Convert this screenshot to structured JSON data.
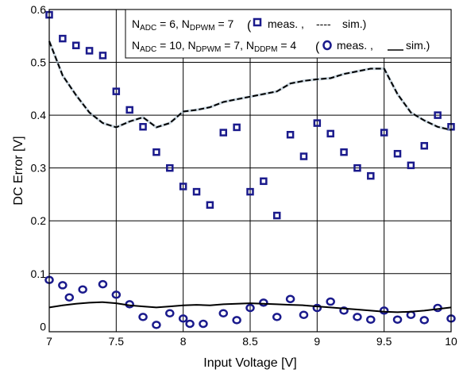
{
  "chart_data": {
    "type": "scatter",
    "xlabel": "Input Voltage [V]",
    "ylabel": "DC Error [V]",
    "xlim": [
      7,
      10
    ],
    "ylim": [
      -0.01,
      0.6
    ],
    "xticks": [
      "7",
      "7.5",
      "8",
      "8.5",
      "9",
      "9.5",
      "10"
    ],
    "yticks": [
      "0",
      "0.1",
      "0.2",
      "0.3",
      "0.4",
      "0.5",
      "0.6"
    ],
    "grid": true,
    "legend_position": "top-right",
    "series": [
      {
        "marker": "square",
        "color": "#1a1a8c",
        "x": [
          7.0,
          7.1,
          7.2,
          7.3,
          7.4,
          7.5,
          7.6,
          7.7,
          7.8,
          7.9,
          8.0,
          8.1,
          8.2,
          8.3,
          8.4,
          8.5,
          8.6,
          8.7,
          8.8,
          8.9,
          9.0,
          9.1,
          9.2,
          9.3,
          9.4,
          9.5,
          9.6,
          9.7,
          9.8,
          9.9,
          10.0
        ],
        "y": [
          0.59,
          0.545,
          0.532,
          0.522,
          0.513,
          0.445,
          0.41,
          0.378,
          0.33,
          0.3,
          0.265,
          0.255,
          0.23,
          0.367,
          0.377,
          0.255,
          0.275,
          0.21,
          0.363,
          0.322,
          0.385,
          0.365,
          0.33,
          0.3,
          0.285,
          0.367,
          0.327,
          0.305,
          0.342,
          0.4,
          0.378
        ]
      },
      {
        "marker": "circle",
        "color": "#1a1a8c",
        "x": [
          7.0,
          7.1,
          7.15,
          7.25,
          7.4,
          7.5,
          7.6,
          7.7,
          7.8,
          7.9,
          8.0,
          8.05,
          8.15,
          8.3,
          8.4,
          8.5,
          8.6,
          8.7,
          8.8,
          8.9,
          9.0,
          9.1,
          9.2,
          9.3,
          9.4,
          9.5,
          9.6,
          9.7,
          9.8,
          9.9,
          10.0
        ],
        "y": [
          0.088,
          0.078,
          0.055,
          0.07,
          0.08,
          0.06,
          0.042,
          0.018,
          0.003,
          0.025,
          0.015,
          0.005,
          0.005,
          0.025,
          0.012,
          0.035,
          0.045,
          0.018,
          0.052,
          0.022,
          0.035,
          0.047,
          0.03,
          0.018,
          0.013,
          0.03,
          0.013,
          0.022,
          0.012,
          0.035,
          0.015
        ]
      },
      {
        "style": "dashed",
        "color": "#000000",
        "x": [
          7.0,
          7.1,
          7.2,
          7.3,
          7.4,
          7.5,
          7.6,
          7.7,
          7.8,
          7.9,
          8.0,
          8.1,
          8.2,
          8.3,
          8.4,
          8.5,
          8.6,
          8.7,
          8.8,
          8.9,
          9.0,
          9.1,
          9.2,
          9.3,
          9.4,
          9.5,
          9.6,
          9.7,
          9.8,
          9.9,
          10.0
        ],
        "y": [
          0.54,
          0.475,
          0.438,
          0.405,
          0.385,
          0.377,
          0.388,
          0.396,
          0.377,
          0.385,
          0.407,
          0.41,
          0.415,
          0.425,
          0.43,
          0.435,
          0.44,
          0.445,
          0.46,
          0.465,
          0.468,
          0.47,
          0.478,
          0.483,
          0.488,
          0.488,
          0.44,
          0.405,
          0.39,
          0.378,
          0.372
        ]
      },
      {
        "style": "solid",
        "color": "#000000",
        "x": [
          7.0,
          7.1,
          7.2,
          7.3,
          7.4,
          7.5,
          7.6,
          7.7,
          7.8,
          7.9,
          8.0,
          8.1,
          8.2,
          8.3,
          8.4,
          8.5,
          8.6,
          8.7,
          8.8,
          8.9,
          9.0,
          9.1,
          9.2,
          9.3,
          9.4,
          9.5,
          9.6,
          9.7,
          9.8,
          9.9,
          10.0
        ],
        "y": [
          0.036,
          0.04,
          0.043,
          0.045,
          0.046,
          0.044,
          0.04,
          0.038,
          0.036,
          0.038,
          0.04,
          0.041,
          0.04,
          0.042,
          0.043,
          0.044,
          0.043,
          0.042,
          0.041,
          0.04,
          0.038,
          0.036,
          0.034,
          0.032,
          0.03,
          0.028,
          0.027,
          0.028,
          0.03,
          0.033,
          0.036
        ]
      }
    ],
    "legend": {
      "row1": {
        "n1": "N",
        "s1": "ADC",
        "v1": " = 6, N",
        "s2": "DPWM",
        "v2": " = 7",
        "meas": "meas. ,",
        "sim": "sim.)",
        "open_paren": "(",
        "dash_prefix": "----"
      },
      "row2": {
        "n1": "N",
        "s1": "ADC",
        "v1": " = 10, N",
        "s2": "DPWM",
        "v2": " = 7, N",
        "s3": "DDPM",
        "v3": " = 4",
        "meas": "meas. ,",
        "sim": "sim.)",
        "open_paren": "("
      }
    }
  }
}
